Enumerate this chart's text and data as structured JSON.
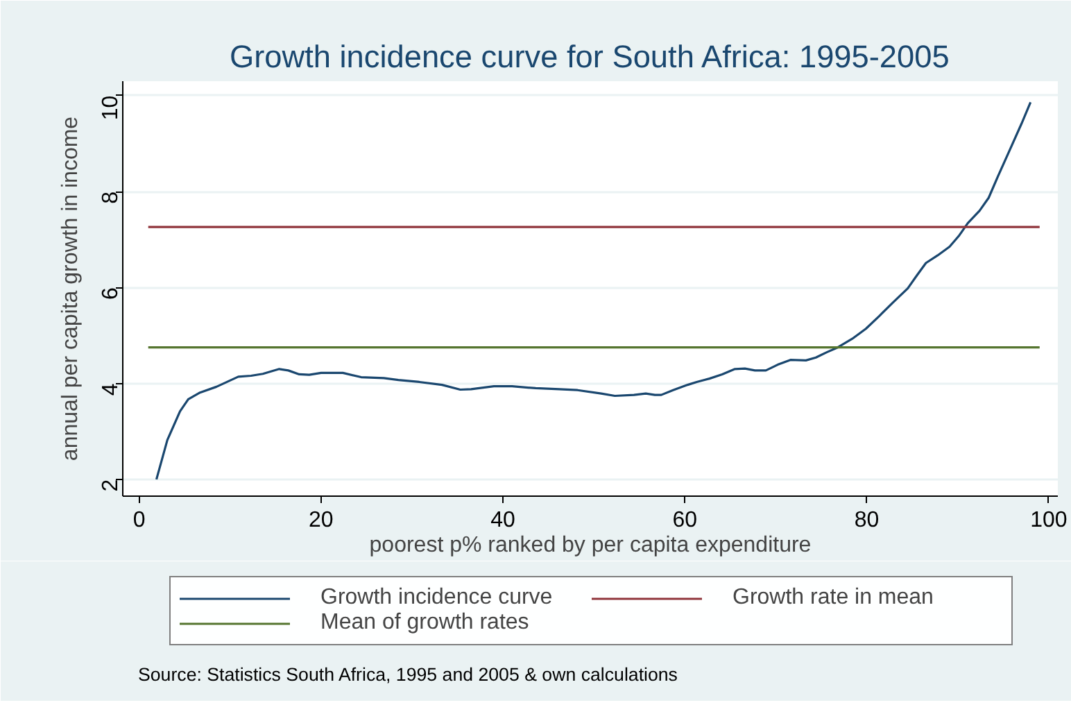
{
  "chart_data": {
    "type": "line",
    "title": "Growth incidence curve for South Africa: 1995-2005",
    "xlabel": "poorest p% ranked by per capita expenditure",
    "ylabel": "annual per capita growth in income",
    "xlim": [
      -1.8,
      101
    ],
    "ylim": [
      1.65,
      10.3
    ],
    "xticks": [
      0,
      20,
      40,
      60,
      80,
      100
    ],
    "yticks": [
      2,
      4,
      6,
      8,
      10
    ],
    "grid": "y",
    "legend": "bottom",
    "series": [
      {
        "name": "Growth incidence curve",
        "color": "#1a476f",
        "x": [
          1.9,
          3.1,
          4.5,
          5.4,
          6.7,
          8.5,
          10.9,
          12.3,
          13.6,
          15.4,
          16.4,
          17.6,
          18.7,
          20,
          22.4,
          24.4,
          26.9,
          28.5,
          30.8,
          33.3,
          35.3,
          36.5,
          39,
          41,
          43.6,
          46.2,
          48.2,
          50.8,
          52.3,
          54.4,
          55.7,
          56.7,
          57.4,
          58.7,
          60.3,
          61.3,
          62.7,
          64.1,
          65.5,
          66.6,
          67.7,
          68.9,
          70.2,
          71.6,
          73.3,
          74.4,
          75.6,
          76.8,
          78.4,
          79.9,
          81.4,
          82.9,
          84.5,
          85.5,
          86.5,
          87.8,
          89.1,
          90.1,
          91.1,
          92.4,
          93.4,
          94.4,
          95.7,
          97.0,
          98.0
        ],
        "values": [
          2.0,
          2.82,
          3.42,
          3.67,
          3.81,
          3.93,
          4.14,
          4.16,
          4.2,
          4.3,
          4.27,
          4.19,
          4.18,
          4.22,
          4.22,
          4.13,
          4.11,
          4.07,
          4.03,
          3.97,
          3.87,
          3.88,
          3.94,
          3.94,
          3.9,
          3.88,
          3.86,
          3.79,
          3.74,
          3.76,
          3.79,
          3.76,
          3.76,
          3.86,
          3.97,
          4.03,
          4.1,
          4.19,
          4.3,
          4.31,
          4.27,
          4.27,
          4.39,
          4.49,
          4.48,
          4.54,
          4.65,
          4.75,
          4.93,
          5.14,
          5.41,
          5.69,
          5.98,
          6.25,
          6.51,
          6.67,
          6.85,
          7.07,
          7.34,
          7.6,
          7.87,
          8.31,
          8.86,
          9.41,
          9.86
        ]
      },
      {
        "name": "Growth rate in mean",
        "color": "#90353b",
        "x": [
          1,
          99
        ],
        "values": [
          7.26,
          7.26
        ]
      },
      {
        "name": "Mean of growth rates",
        "color": "#55752f",
        "x": [
          1,
          99
        ],
        "values": [
          4.75,
          4.75
        ]
      }
    ],
    "annotations": [
      "Source: Statistics South Africa, 1995 and 2005 & own calculations"
    ]
  }
}
